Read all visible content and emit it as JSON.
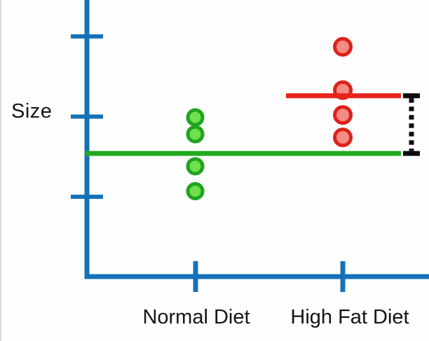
{
  "chart_data": {
    "type": "scatter",
    "title": "",
    "xlabel": "",
    "ylabel": "Size",
    "categories": [
      "Normal Diet",
      "High Fat Diet"
    ],
    "y_axis": {
      "numeric_labels_shown": false,
      "tick_values": [
        0,
        1,
        2
      ],
      "tick_labels": [
        "",
        "",
        ""
      ],
      "note": "axis ticks are unlabeled; values below are in tick-spacing units measured from the bottom y-tick"
    },
    "series": [
      {
        "name": "Normal Diet",
        "marker_outline_color": "#1fa51d",
        "marker_fill_color": "#6ee04f",
        "values": [
          0.99,
          0.78,
          0.38,
          0.07
        ],
        "mean": 0.54,
        "mean_line_color": "#22aa1e"
      },
      {
        "name": "High Fat Diet",
        "marker_outline_color": "#de211a",
        "marker_fill_color": "#f48c86",
        "values": [
          1.87,
          1.33,
          1.02,
          0.74
        ],
        "mean": 1.26,
        "mean_line_color": "#e8231a"
      }
    ],
    "difference_bracket": {
      "from_mean": 0.54,
      "to_mean": 1.26,
      "color": "#0d0d0d",
      "style": "dotted-vertical-with-solid-end-caps",
      "position": "right-of-plot"
    },
    "axis_color": "#1572b9",
    "grid": false,
    "legend": "none"
  }
}
